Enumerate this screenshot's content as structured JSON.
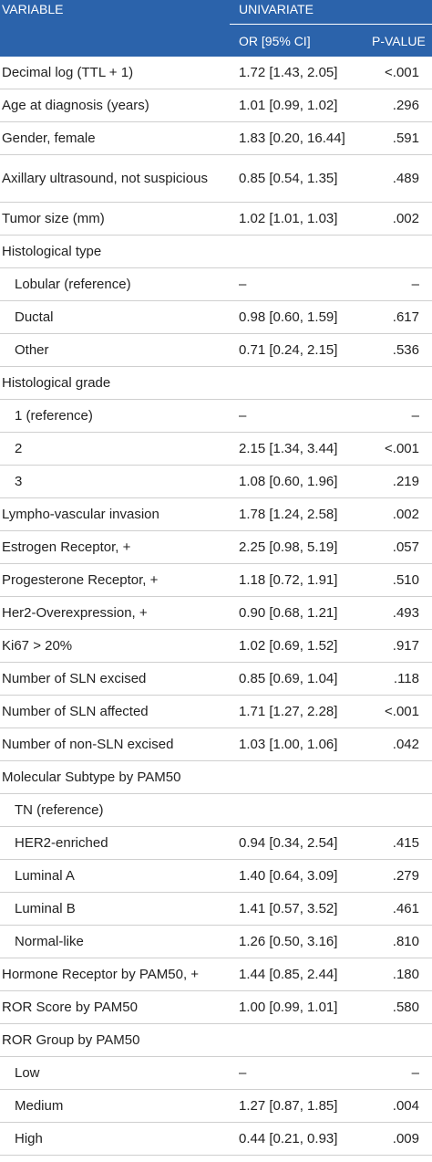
{
  "header": {
    "variable": "VARIABLE",
    "group": "UNIVARIATE",
    "columns": [
      "OR [95% CI]",
      "P-VALUE"
    ]
  },
  "rows": [
    {
      "label": "Decimal log (TTL + 1)",
      "or": "1.72 [1.43, 2.05]",
      "p": "<.001"
    },
    {
      "label": "Age at diagnosis (years)",
      "or": "1.01 [0.99, 1.02]",
      "p": ".296"
    },
    {
      "label": "Gender, female",
      "or": "1.83 [0.20, 16.44]",
      "p": ".591"
    },
    {
      "label": "Axillary ultrasound, not suspicious",
      "or": "0.85 [0.54, 1.35]",
      "p": ".489"
    },
    {
      "label": "Tumor size (mm)",
      "or": "1.02 [1.01, 1.03]",
      "p": ".002"
    },
    {
      "label": "Histological type",
      "subrows": [
        {
          "label": "Lobular (reference)",
          "or": "–",
          "p": "–"
        },
        {
          "label": "Ductal",
          "or": "0.98 [0.60, 1.59]",
          "p": ".617"
        },
        {
          "label": "Other",
          "or": "0.71 [0.24, 2.15]",
          "p": ".536"
        }
      ]
    },
    {
      "label": "Histological grade",
      "subrows": [
        {
          "label": "1 (reference)",
          "or": "–",
          "p": "–"
        },
        {
          "label": "2",
          "or": "2.15 [1.34, 3.44]",
          "p": "<.001"
        },
        {
          "label": "3",
          "or": "1.08 [0.60, 1.96]",
          "p": ".219"
        }
      ]
    },
    {
      "label": "Lympho-vascular invasion",
      "or": "1.78 [1.24, 2.58]",
      "p": ".002"
    },
    {
      "label": "Estrogen Receptor, +",
      "or": "2.25 [0.98, 5.19]",
      "p": ".057"
    },
    {
      "label": "Progesterone Receptor, +",
      "or": "1.18 [0.72, 1.91]",
      "p": ".510"
    },
    {
      "label": "Her2-Overexpression, +",
      "or": "0.90 [0.68, 1.21]",
      "p": ".493"
    },
    {
      "label": "Ki67 > 20%",
      "or": "1.02 [0.69, 1.52]",
      "p": ".917"
    },
    {
      "label": "Number of SLN excised",
      "or": "0.85 [0.69, 1.04]",
      "p": ".118"
    },
    {
      "label": "Number of SLN affected",
      "or": "1.71 [1.27, 2.28]",
      "p": "<.001"
    },
    {
      "label": "Number of non-SLN excised",
      "or": "1.03 [1.00, 1.06]",
      "p": ".042"
    },
    {
      "label": "Molecular Subtype by PAM50",
      "subrows": [
        {
          "label": "TN (reference)"
        },
        {
          "label": "HER2-enriched",
          "or": "0.94 [0.34, 2.54]",
          "p": ".415"
        },
        {
          "label": "Luminal A",
          "or": "1.40 [0.64, 3.09]",
          "p": ".279"
        },
        {
          "label": "Luminal B",
          "or": "1.41 [0.57, 3.52]",
          "p": ".461"
        },
        {
          "label": "Normal-like",
          "or": "1.26 [0.50, 3.16]",
          "p": ".810"
        }
      ]
    },
    {
      "label": "Hormone Receptor by PAM50, +",
      "or": "1.44 [0.85, 2.44]",
      "p": ".180"
    },
    {
      "label": "ROR Score by PAM50",
      "or": "1.00 [0.99, 1.01]",
      "p": ".580"
    },
    {
      "label": "ROR Group by PAM50",
      "subrows": [
        {
          "label": "Low",
          "or": "–",
          "p": "–"
        },
        {
          "label": "Medium",
          "or": "1.27 [0.87, 1.85]",
          "p": ".004"
        },
        {
          "label": "High",
          "or": "0.44 [0.21, 0.93]",
          "p": ".009"
        }
      ]
    }
  ]
}
